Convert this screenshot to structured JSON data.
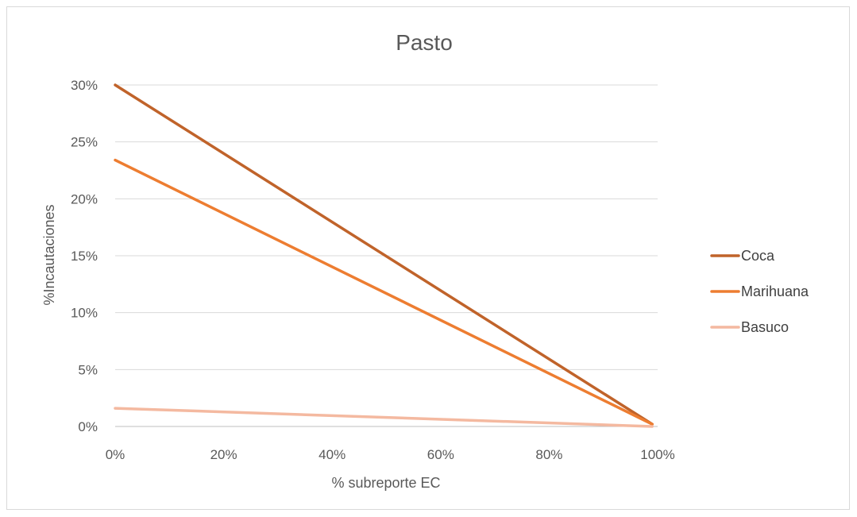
{
  "chart_data": {
    "type": "line",
    "title": "Pasto",
    "xlabel": "% subreporte EC",
    "ylabel": "%Incautaciones",
    "xlim": [
      0,
      1
    ],
    "ylim": [
      0,
      0.3
    ],
    "x_ticks": [
      "0%",
      "20%",
      "40%",
      "60%",
      "80%",
      "100%"
    ],
    "y_ticks": [
      "0%",
      "5%",
      "10%",
      "15%",
      "20%",
      "25%",
      "30%"
    ],
    "grid": "horizontal",
    "legend_position": "right",
    "series": [
      {
        "name": "Coca",
        "color": "#c0632a",
        "x": [
          0,
          0.99
        ],
        "y": [
          0.3,
          0.002
        ]
      },
      {
        "name": "Marihuana",
        "color": "#ed7d31",
        "x": [
          0,
          0.99
        ],
        "y": [
          0.234,
          0.002
        ]
      },
      {
        "name": "Basuco",
        "color": "#f4b9a0",
        "x": [
          0,
          0.99
        ],
        "y": [
          0.016,
          0.0
        ]
      }
    ]
  }
}
